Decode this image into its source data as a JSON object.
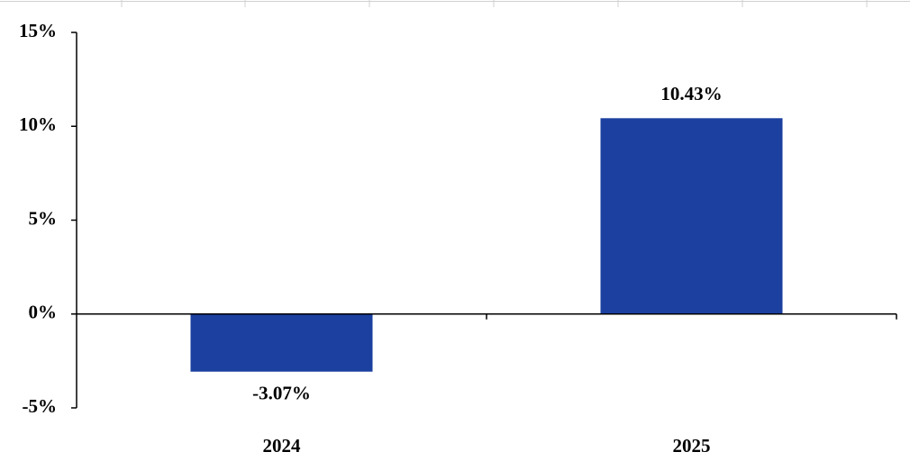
{
  "chart_data": {
    "type": "bar",
    "categories": [
      "2024",
      "2025"
    ],
    "values": [
      -3.07,
      10.43
    ],
    "value_labels": [
      "-3.07%",
      "10.43%"
    ],
    "color": "#1b40a0",
    "ylim": [
      -5,
      15
    ],
    "yticks": [
      {
        "value": -5,
        "label": "-5%"
      },
      {
        "value": 0,
        "label": "0%"
      },
      {
        "value": 5,
        "label": "5%"
      },
      {
        "value": 10,
        "label": "10%"
      },
      {
        "value": 15,
        "label": "15%"
      }
    ],
    "grid": false
  }
}
